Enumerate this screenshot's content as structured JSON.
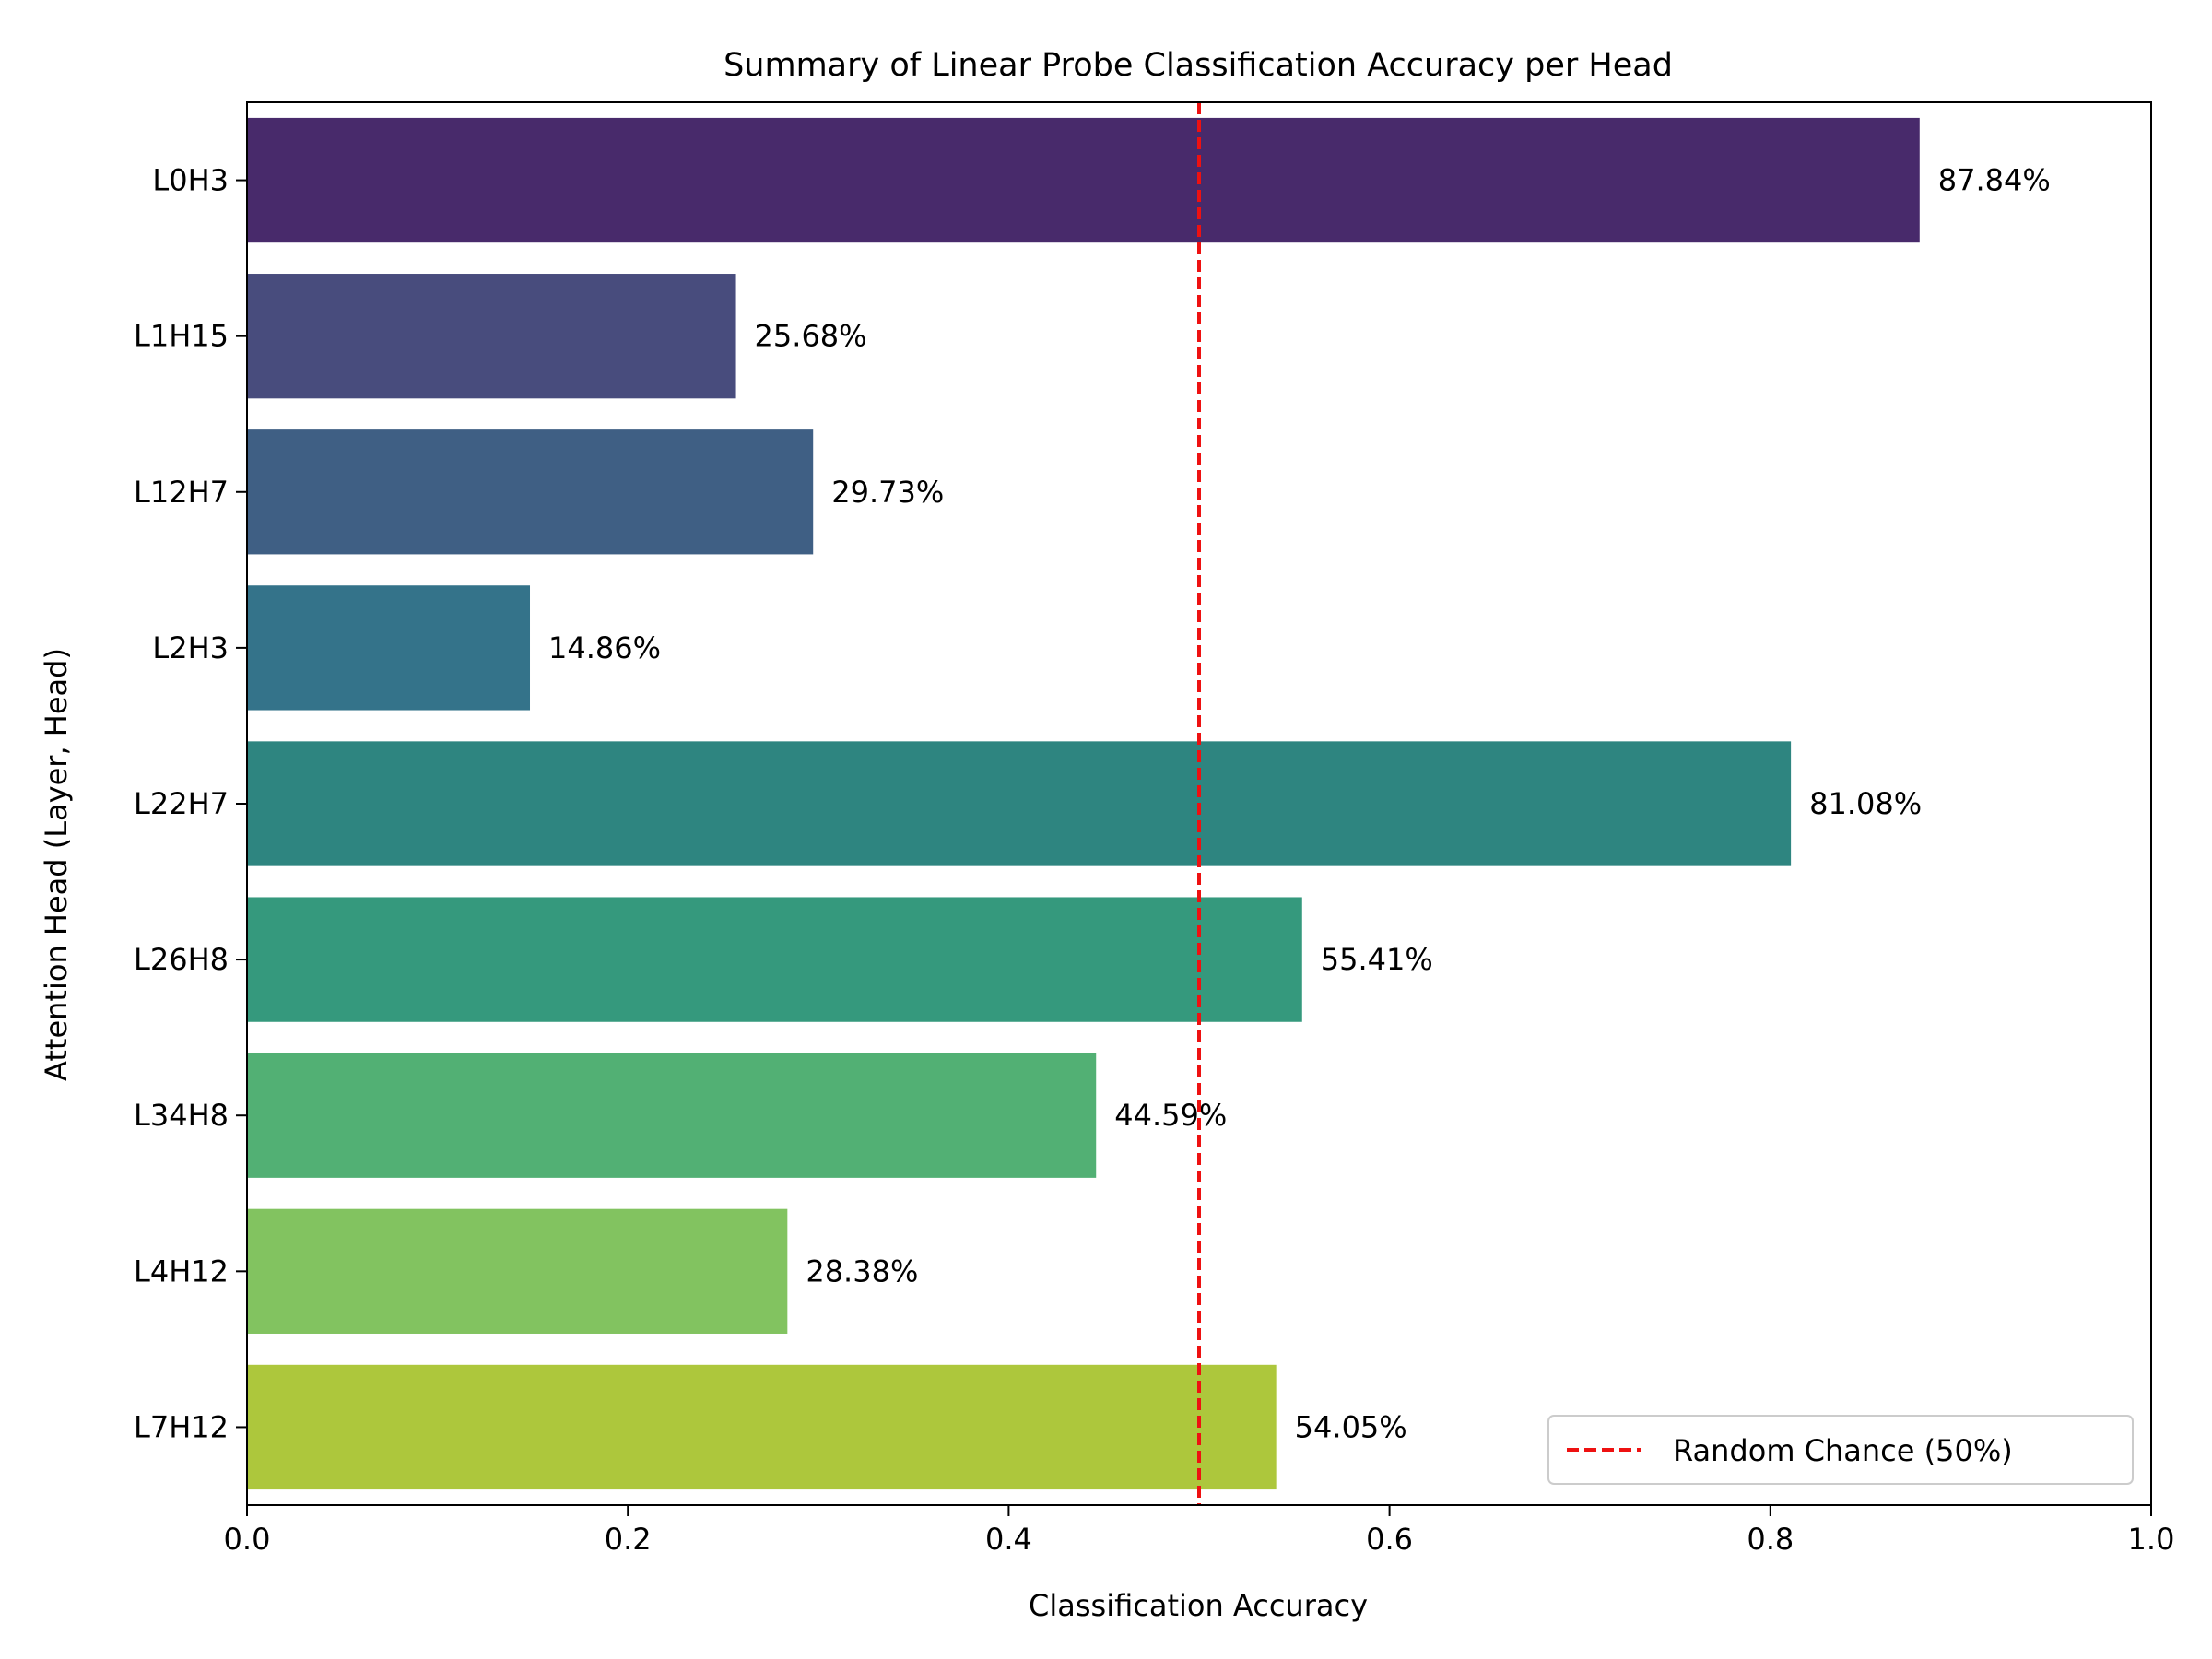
{
  "chart_data": {
    "type": "bar",
    "orientation": "horizontal",
    "title": "Summary of Linear Probe Classification Accuracy per Head",
    "xlabel": "Classification Accuracy",
    "ylabel": "Attention Head (Layer, Head)",
    "xlim": [
      0,
      1
    ],
    "xticks": [
      "0.0",
      "0.2",
      "0.4",
      "0.6",
      "0.8",
      "1.0"
    ],
    "xtick_values": [
      0,
      0.2,
      0.4,
      0.6,
      0.8,
      1.0
    ],
    "grid": false,
    "categories": [
      "L0H3",
      "L1H15",
      "L12H7",
      "L2H3",
      "L22H7",
      "L26H8",
      "L34H8",
      "L4H12",
      "L7H12"
    ],
    "values": [
      0.8784,
      0.2568,
      0.2973,
      0.1486,
      0.8108,
      0.5541,
      0.4459,
      0.2838,
      0.5405
    ],
    "data_labels": [
      "87.84%",
      "25.68%",
      "29.73%",
      "14.86%",
      "81.08%",
      "55.41%",
      "44.59%",
      "28.38%",
      "54.05%"
    ],
    "bar_colors": [
      "#482a6b",
      "#484c7d",
      "#3f5f84",
      "#34738a",
      "#2e8580",
      "#35997d",
      "#52b074",
      "#82c360",
      "#adc73c"
    ],
    "reference_line": {
      "value": 0.5,
      "style": "dashed",
      "color": "#ee1111",
      "label": "Random Chance (50%)"
    },
    "legend": {
      "placement": "lower-right",
      "entries": [
        "Random Chance (50%)"
      ]
    }
  }
}
